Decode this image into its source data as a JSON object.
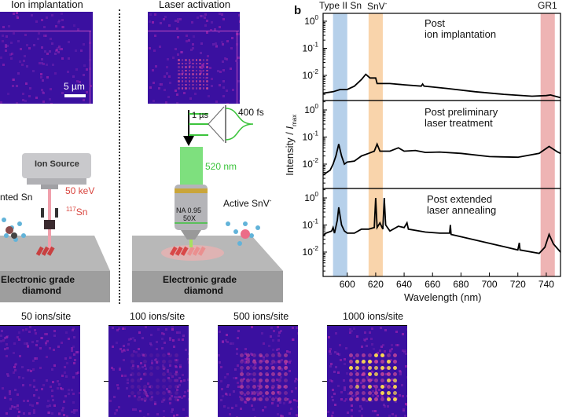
{
  "panel_a": {
    "ion_implantation_title": "Ion implantation",
    "laser_activation_title": "Laser activation",
    "scale_bar": "5 µm",
    "ion_source": "Ion Source",
    "energy": "50 keV",
    "isotope_mass": "117",
    "isotope_symbol": "Sn",
    "implanted_label": "nted Sn",
    "substrate_left": [
      "Electronic grade",
      "diamond"
    ],
    "substrate_right": [
      "Electronic grade",
      "diamond"
    ],
    "pulse_period": "1 µs",
    "pulse_width": "400 fs",
    "wavelength": "520 nm",
    "objective": [
      "NA 0.95",
      "50X"
    ],
    "active_label": "Active SnV",
    "active_charge": "-",
    "colors": {
      "ion_beam": "#e07a86",
      "laser": "#6fdc6f",
      "label_red": "#d9453e",
      "label_green": "#3cc43c",
      "image_bg": "#3a10a0"
    }
  },
  "panel_b": {
    "panel_label": "b",
    "band_labels": {
      "type2": "Type II Sn",
      "snv": "SnV",
      "snv_charge": "-",
      "gr1": "GR1"
    },
    "subpanel_titles": [
      [
        "Post",
        "ion implantation"
      ],
      [
        "Post preliminary",
        "laser treatment"
      ],
      [
        "Post extended",
        "laser annealing"
      ]
    ],
    "ylabel_main": "Intensity / ",
    "ylabel_italic": "I",
    "ylabel_sub": "max",
    "xlabel": "Wavelength (nm)"
  },
  "chart_data": {
    "type": "line",
    "xlabel": "Wavelength (nm)",
    "ylabel": "Intensity / Imax",
    "xlim": [
      583,
      750
    ],
    "xticks": [
      600,
      620,
      640,
      660,
      680,
      700,
      720,
      740
    ],
    "yscale": "log",
    "ylim": [
      0.001,
      2
    ],
    "yticks": [
      "10^0",
      "10^-1",
      "10^-2"
    ],
    "bands": [
      {
        "name": "Type II Sn",
        "range": [
          590,
          600
        ],
        "color": "#a9c8e6"
      },
      {
        "name": "SnV-",
        "range": [
          615,
          625
        ],
        "color": "#f8cc9c"
      },
      {
        "name": "GR1",
        "range": [
          736,
          746
        ],
        "color": "#eba7a7"
      }
    ],
    "series": [
      {
        "points": [
          [
            583,
            0.0022
          ],
          [
            590,
            0.0025
          ],
          [
            595,
            0.003
          ],
          [
            600,
            0.003
          ],
          [
            605,
            0.004
          ],
          [
            610,
            0.007
          ],
          [
            613,
            0.011
          ],
          [
            616,
            0.008
          ],
          [
            620,
            0.008
          ],
          [
            621,
            0.005
          ],
          [
            630,
            0.005
          ],
          [
            640,
            0.0045
          ],
          [
            652,
            0.004
          ],
          [
            653,
            0.0048
          ],
          [
            654,
            0.004
          ],
          [
            670,
            0.0033
          ],
          [
            690,
            0.0025
          ],
          [
            710,
            0.002
          ],
          [
            730,
            0.0017
          ],
          [
            740,
            0.0018
          ],
          [
            743,
            0.0019
          ],
          [
            750,
            0.0015
          ]
        ]
      },
      {
        "points": [
          [
            583,
            0.004
          ],
          [
            588,
            0.006
          ],
          [
            590,
            0.01
          ],
          [
            592,
            0.02
          ],
          [
            594,
            0.055
          ],
          [
            596,
            0.02
          ],
          [
            598,
            0.01
          ],
          [
            600,
            0.012
          ],
          [
            605,
            0.013
          ],
          [
            610,
            0.02
          ],
          [
            615,
            0.025
          ],
          [
            619,
            0.03
          ],
          [
            621,
            0.055
          ],
          [
            623,
            0.03
          ],
          [
            630,
            0.03
          ],
          [
            636,
            0.04
          ],
          [
            640,
            0.03
          ],
          [
            648,
            0.032
          ],
          [
            655,
            0.027
          ],
          [
            665,
            0.028
          ],
          [
            680,
            0.025
          ],
          [
            700,
            0.019
          ],
          [
            720,
            0.018
          ],
          [
            735,
            0.025
          ],
          [
            742,
            0.045
          ],
          [
            748,
            0.028
          ],
          [
            750,
            0.025
          ]
        ]
      },
      {
        "points": [
          [
            583,
            0.04
          ],
          [
            585,
            0.05
          ],
          [
            589,
            0.06
          ],
          [
            590,
            0.08
          ],
          [
            591,
            0.05
          ],
          [
            593,
            0.15
          ],
          [
            594,
            0.45
          ],
          [
            596,
            0.1
          ],
          [
            598,
            0.06
          ],
          [
            600,
            0.05
          ],
          [
            605,
            0.05
          ],
          [
            610,
            0.07
          ],
          [
            615,
            0.07
          ],
          [
            619,
            0.08
          ],
          [
            620,
            1.0
          ],
          [
            621,
            0.08
          ],
          [
            623,
            0.12
          ],
          [
            625,
            0.07
          ],
          [
            626,
            1.0
          ],
          [
            627,
            0.1
          ],
          [
            630,
            0.06
          ],
          [
            636,
            0.09
          ],
          [
            640,
            0.08
          ],
          [
            642,
            0.12
          ],
          [
            643,
            0.07
          ],
          [
            655,
            0.055
          ],
          [
            665,
            0.05
          ],
          [
            672,
            0.05
          ],
          [
            672.5,
            0.1
          ],
          [
            673,
            0.045
          ],
          [
            690,
            0.028
          ],
          [
            710,
            0.016
          ],
          [
            720,
            0.012
          ],
          [
            721,
            0.022
          ],
          [
            721.5,
            0.012
          ],
          [
            735,
            0.009
          ],
          [
            739,
            0.015
          ],
          [
            742,
            0.045
          ],
          [
            745,
            0.02
          ],
          [
            750,
            0.01
          ]
        ]
      }
    ]
  },
  "panel_c": {
    "images": [
      {
        "label": "50 ions/site",
        "level": 0.05
      },
      {
        "label": "100 ions/site",
        "level": 0.15
      },
      {
        "label": "500 ions/site",
        "level": 0.6
      },
      {
        "label": "1000 ions/site",
        "level": 1.0
      }
    ]
  }
}
